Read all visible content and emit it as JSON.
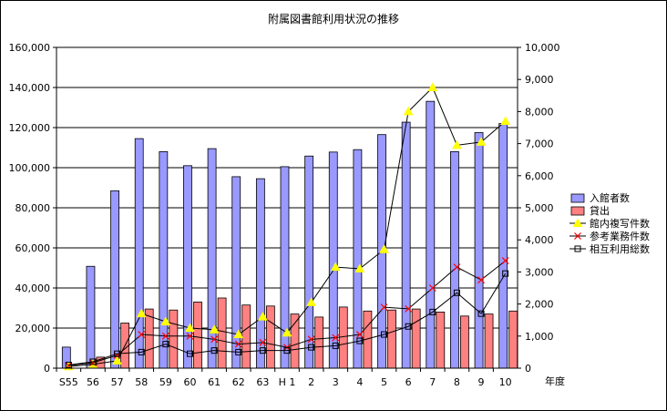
{
  "chart_data": {
    "type": "bar",
    "title": "附属図書館利用状況の推移",
    "xlabel": "年度",
    "categories": [
      "S55",
      "56",
      "57",
      "58",
      "59",
      "60",
      "61",
      "62",
      "63",
      "H 1",
      "2",
      "3",
      "4",
      "5",
      "6",
      "7",
      "8",
      "9",
      "10"
    ],
    "ylim_left": [
      0,
      160000
    ],
    "ylim_right": [
      0,
      10000
    ],
    "y_ticks_left": [
      "0",
      "20,000",
      "40,000",
      "60,000",
      "80,000",
      "100,000",
      "120,000",
      "140,000",
      "160,000"
    ],
    "y_ticks_right": [
      "0",
      "1,000",
      "2,000",
      "3,000",
      "4,000",
      "5,000",
      "6,000",
      "7,000",
      "8,000",
      "9,000",
      "10,000"
    ],
    "legend_position": "right",
    "grid": "horizontal",
    "series": [
      {
        "name": "入館者数",
        "kind": "bar",
        "axis": "left",
        "color": "#9999ff",
        "values": [
          10500,
          50800,
          88500,
          114500,
          108000,
          101000,
          109500,
          95500,
          94500,
          100500,
          105800,
          107800,
          109000,
          116500,
          122700,
          133100,
          108000,
          117500,
          122000
        ]
      },
      {
        "name": "貸出",
        "kind": "bar",
        "axis": "left",
        "color": "#ff8080",
        "values": [
          0,
          5500,
          22500,
          29500,
          29000,
          33000,
          35000,
          31500,
          31000,
          27000,
          25500,
          30500,
          28500,
          29000,
          29500,
          28000,
          26000,
          27000,
          28500
        ]
      },
      {
        "name": "館内複写件数",
        "kind": "line",
        "axis": "right",
        "color": "#ffff00",
        "marker": "triangle",
        "values": [
          50,
          120,
          230,
          1700,
          1450,
          1250,
          1200,
          1050,
          1600,
          1100,
          2050,
          3150,
          3100,
          3700,
          8000,
          8750,
          6950,
          7050,
          7700
        ]
      },
      {
        "name": "参考業務件数",
        "kind": "line",
        "axis": "right",
        "color": "#ff0000",
        "marker": "x",
        "values": [
          80,
          170,
          400,
          1050,
          1000,
          1000,
          900,
          750,
          800,
          650,
          900,
          950,
          1050,
          1900,
          1850,
          2500,
          3150,
          2750,
          3350
        ]
      },
      {
        "name": "相互利用総数",
        "kind": "line",
        "axis": "right",
        "color": "#000000",
        "marker": "square",
        "values": [
          100,
          200,
          450,
          500,
          750,
          450,
          550,
          500,
          550,
          550,
          650,
          700,
          850,
          1050,
          1300,
          1750,
          2350,
          1700,
          2950
        ]
      }
    ]
  }
}
